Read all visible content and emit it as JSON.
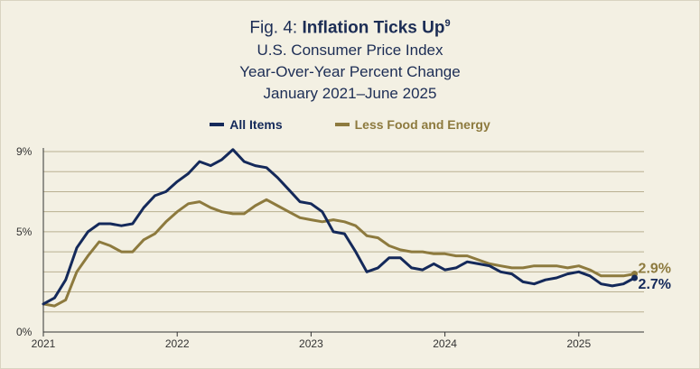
{
  "header": {
    "fig_label": "Fig. 4:",
    "fig_title": "Inflation Ticks Up",
    "footnote": "9",
    "subtitle_1": "U.S. Consumer Price Index",
    "subtitle_2": "Year-Over-Year Percent Change",
    "subtitle_3": "January 2021–June 2025"
  },
  "colors": {
    "all_items": "#14295a",
    "core": "#8d7a3e",
    "grid": "#b9b091",
    "axis": "#333333",
    "background": "#f3f0e3"
  },
  "chart_data": {
    "type": "line",
    "title": "Inflation Ticks Up",
    "subtitle": "U.S. Consumer Price Index, Year-Over-Year Percent Change, January 2021–June 2025",
    "xlabel": "",
    "ylabel": "",
    "ylim": [
      0,
      9.0
    ],
    "y_ticks": [
      {
        "value": 0,
        "label": "0%"
      },
      {
        "value": 5,
        "label": "5%"
      },
      {
        "value": 9,
        "label": "9%"
      }
    ],
    "x_ticks": [
      {
        "month_index": 0,
        "label": "2021"
      },
      {
        "month_index": 12,
        "label": "2022"
      },
      {
        "month_index": 24,
        "label": "2023"
      },
      {
        "month_index": 36,
        "label": "2024"
      },
      {
        "month_index": 48,
        "label": "2025"
      }
    ],
    "legend_position": "top-center",
    "x_start": "2021-01",
    "x_end": "2025-06",
    "series": [
      {
        "name": "All Items",
        "end_label": "2.7%",
        "values": [
          1.4,
          1.7,
          2.6,
          4.2,
          5.0,
          5.4,
          5.4,
          5.3,
          5.4,
          6.2,
          6.8,
          7.0,
          7.5,
          7.9,
          8.5,
          8.3,
          8.6,
          9.1,
          8.5,
          8.3,
          8.2,
          7.7,
          7.1,
          6.5,
          6.4,
          6.0,
          5.0,
          4.9,
          4.0,
          3.0,
          3.2,
          3.7,
          3.7,
          3.2,
          3.1,
          3.4,
          3.1,
          3.2,
          3.5,
          3.4,
          3.3,
          3.0,
          2.9,
          2.5,
          2.4,
          2.6,
          2.7,
          2.9,
          3.0,
          2.8,
          2.4,
          2.3,
          2.4,
          2.7
        ]
      },
      {
        "name": "Less Food and Energy",
        "end_label": "2.9%",
        "values": [
          1.4,
          1.3,
          1.6,
          3.0,
          3.8,
          4.5,
          4.3,
          4.0,
          4.0,
          4.6,
          4.9,
          5.5,
          6.0,
          6.4,
          6.5,
          6.2,
          6.0,
          5.9,
          5.9,
          6.3,
          6.6,
          6.3,
          6.0,
          5.7,
          5.6,
          5.5,
          5.6,
          5.5,
          5.3,
          4.8,
          4.7,
          4.3,
          4.1,
          4.0,
          4.0,
          3.9,
          3.9,
          3.8,
          3.8,
          3.6,
          3.4,
          3.3,
          3.2,
          3.2,
          3.3,
          3.3,
          3.3,
          3.2,
          3.3,
          3.1,
          2.8,
          2.8,
          2.8,
          2.9
        ]
      }
    ]
  }
}
